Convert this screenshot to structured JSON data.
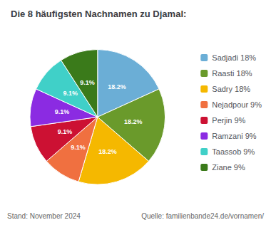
{
  "chart_data": {
    "type": "pie",
    "title": "Die 8 häufigsten Nachnamen zu Djamal:",
    "categories": [
      "Sadjadi 18%",
      "Raasti 18%",
      "Sadry 18%",
      "Nejadpour 9%",
      "Perjin 9%",
      "Ramzani 9%",
      "Taassob 9%",
      "Ziane 9%"
    ],
    "values": [
      18.2,
      18.2,
      18.2,
      9.1,
      9.1,
      9.1,
      9.1,
      9.1
    ],
    "value_labels": [
      "18.2%",
      "18.2%",
      "18.2%",
      "9.1%",
      "9.1%",
      "9.1%",
      "9.1%",
      "9.1%"
    ],
    "colors": [
      "#6baed6",
      "#6a9a2b",
      "#f5b800",
      "#f07040",
      "#cc1133",
      "#8b2be2",
      "#40d0c8",
      "#3a7a1a"
    ],
    "data_labels": true,
    "legend": "right",
    "annotations": [
      "Stand: November 2024",
      "Quelle: familienbande24.de/vornamen/"
    ]
  }
}
